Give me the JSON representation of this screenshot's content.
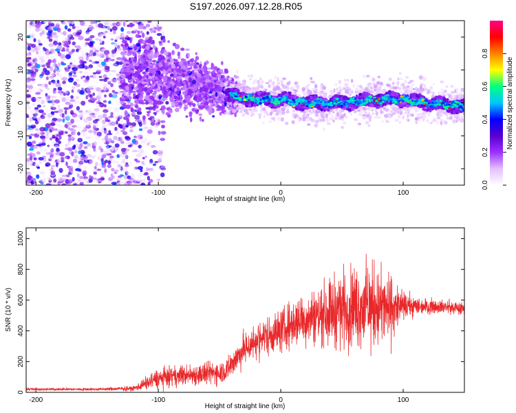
{
  "title": "S197.2026.097.12.28.R05",
  "chart_data": [
    {
      "type": "heatmap",
      "title": "S197.2026.097.12.28.R05",
      "xlabel": "Height of straight line (km)",
      "ylabel": "Frequency (Hz)",
      "xlim": [
        -208,
        150
      ],
      "ylim": [
        -25,
        25
      ],
      "xticks": [
        -200,
        -100,
        0,
        100
      ],
      "yticks": [
        -20,
        -10,
        0,
        10,
        20
      ],
      "colorbar": {
        "label": "Normalized spectral amplitude",
        "range": [
          0,
          1
        ],
        "ticks": [
          0.0,
          0.2,
          0.4,
          0.6,
          0.8
        ],
        "colormap": [
          "#ffffff",
          "#e4c0ff",
          "#9b30ff",
          "#5a00d0",
          "#0000ff",
          "#00c8ff",
          "#00ff80",
          "#ffff00",
          "#ff8000",
          "#ff0000",
          "#ff0088"
        ]
      },
      "ridge": {
        "description_points_x": [
          -125,
          -100,
          -75,
          -50,
          -40,
          -20,
          0,
          20,
          50,
          80,
          100,
          120,
          150
        ],
        "description_points_y": [
          10,
          8,
          6,
          4,
          2,
          1,
          1,
          0,
          0,
          1,
          1,
          0,
          -1
        ]
      }
    },
    {
      "type": "line",
      "xlabel": "Height of straight line (km)",
      "ylabel": "SNR (10 * v/v)",
      "xlim": [
        -208,
        150
      ],
      "ylim": [
        0,
        1070
      ],
      "xticks": [
        -200,
        -100,
        0,
        100
      ],
      "yticks": [
        0,
        200,
        400,
        600,
        800,
        1000
      ],
      "color": "#e8282a",
      "envelope": {
        "x": [
          -208,
          -180,
          -150,
          -120,
          -110,
          -100,
          -80,
          -60,
          -45,
          -30,
          -15,
          0,
          15,
          30,
          45,
          60,
          75,
          90,
          100,
          115,
          130,
          150
        ],
        "mean": [
          20,
          20,
          20,
          25,
          60,
          90,
          110,
          120,
          140,
          280,
          360,
          400,
          470,
          500,
          540,
          560,
          560,
          540,
          560,
          560,
          560,
          540
        ],
        "spread": [
          8,
          8,
          8,
          15,
          40,
          60,
          60,
          70,
          70,
          100,
          110,
          130,
          150,
          170,
          220,
          240,
          260,
          200,
          80,
          50,
          40,
          40
        ]
      }
    }
  ]
}
